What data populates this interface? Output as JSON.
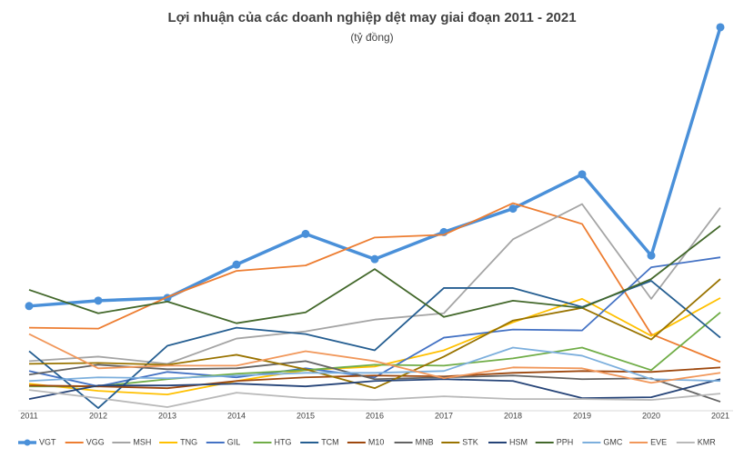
{
  "chart_data": {
    "type": "line",
    "title": "Lợi nhuận của các doanh nghiệp dệt may giai đoạn 2011 - 2021",
    "subtitle": "(tỷ đồng)",
    "categories": [
      "2011",
      "2012",
      "2013",
      "2014",
      "2015",
      "2016",
      "2017",
      "2018",
      "2019",
      "2020",
      "2021"
    ],
    "ylim": [
      0,
      1300
    ],
    "legend": "bottom",
    "series": [
      {
        "name": "VGT",
        "color": "#4a90d9",
        "markers": true,
        "values": [
          348,
          366,
          375,
          486,
          588,
          504,
          594,
          672,
          786,
          516,
          1275
        ]
      },
      {
        "name": "VGG",
        "color": "#ed7d31",
        "values": [
          276,
          273,
          378,
          465,
          483,
          576,
          585,
          690,
          621,
          255,
          162
        ]
      },
      {
        "name": "MSH",
        "color": "#a5a5a5",
        "values": [
          165,
          180,
          156,
          240,
          264,
          303,
          324,
          570,
          687,
          372,
          675
        ]
      },
      {
        "name": "TNG",
        "color": "#ffc000",
        "values": [
          90,
          66,
          54,
          99,
          135,
          147,
          201,
          294,
          372,
          249,
          375
        ]
      },
      {
        "name": "GIL",
        "color": "#4472c4",
        "values": [
          132,
          81,
          129,
          111,
          141,
          111,
          243,
          270,
          267,
          477,
          510
        ]
      },
      {
        "name": "HTG",
        "color": "#70ad47",
        "values": [
          81,
          81,
          105,
          123,
          135,
          153,
          150,
          174,
          210,
          135,
          327
        ]
      },
      {
        "name": "TCM",
        "color": "#255e91",
        "values": [
          198,
          9,
          216,
          276,
          255,
          201,
          408,
          408,
          345,
          432,
          243
        ]
      },
      {
        "name": "M10",
        "color": "#9e480e",
        "values": [
          84,
          81,
          75,
          99,
          111,
          117,
          114,
          126,
          132,
          129,
          144
        ]
      },
      {
        "name": "MNB",
        "color": "#636363",
        "values": [
          120,
          153,
          138,
          141,
          165,
          105,
          111,
          117,
          105,
          108,
          30
        ]
      },
      {
        "name": "STK",
        "color": "#997300",
        "values": [
          156,
          159,
          153,
          186,
          138,
          75,
          180,
          300,
          342,
          237,
          438
        ]
      },
      {
        "name": "HSM",
        "color": "#264478",
        "values": [
          39,
          84,
          84,
          90,
          81,
          99,
          105,
          99,
          42,
          45,
          105
        ]
      },
      {
        "name": "PPH",
        "color": "#43682b",
        "values": [
          402,
          324,
          363,
          291,
          327,
          471,
          312,
          366,
          342,
          438,
          615
        ]
      },
      {
        "name": "GMC",
        "color": "#7cafdd",
        "values": [
          99,
          111,
          108,
          117,
          126,
          126,
          132,
          210,
          183,
          105,
          99
        ]
      },
      {
        "name": "EVE",
        "color": "#f1975a",
        "values": [
          255,
          141,
          150,
          150,
          198,
          165,
          108,
          144,
          141,
          93,
          126
        ]
      },
      {
        "name": "KMR",
        "color": "#b9b9b9",
        "values": [
          69,
          42,
          12,
          60,
          42,
          36,
          48,
          39,
          39,
          36,
          57
        ]
      }
    ]
  }
}
